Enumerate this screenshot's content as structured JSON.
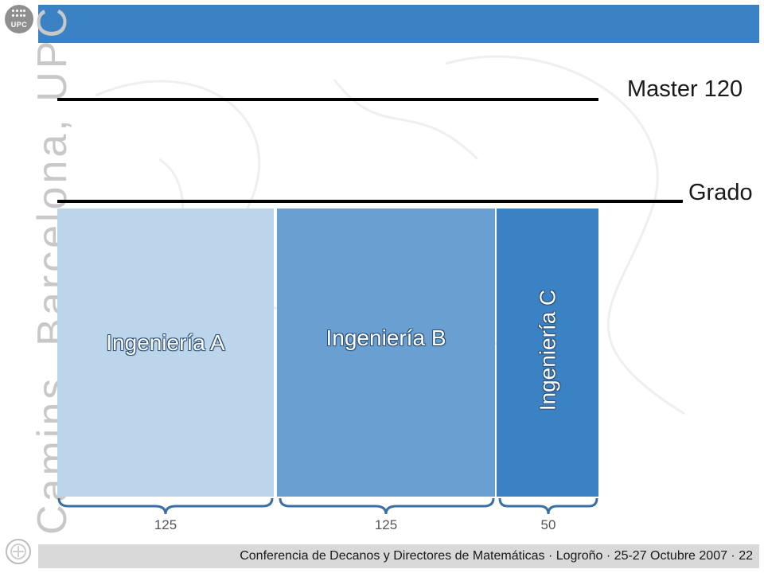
{
  "logo": {
    "text": "UPC",
    "icon": "upc-logo-icon"
  },
  "sidebar": {
    "text": "Camins, Barcelona, UPC"
  },
  "levels": [
    {
      "label": "Master 120"
    },
    {
      "label": "Grado"
    }
  ],
  "blocks": [
    {
      "label": "Ingeniería A",
      "color": "#bdd5ea"
    },
    {
      "label": "Ingeniería B",
      "color": "#6aa0d1"
    },
    {
      "label": "Ingeniería C",
      "color": "#3a82c4"
    }
  ],
  "credits": [
    "125",
    "125",
    "50"
  ],
  "footer": {
    "text": "Conferencia de Decanos y Directores de Matemáticas · Logroño · 25-27 Octubre 2007 · 22"
  },
  "colors": {
    "header": "#3a82c4",
    "footer": "#d9d9d9"
  }
}
